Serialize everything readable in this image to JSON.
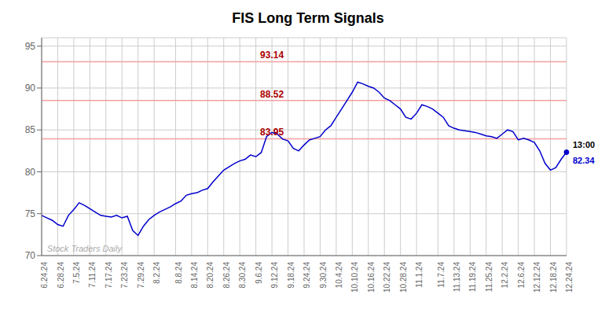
{
  "chart_data": {
    "type": "line",
    "title": "FIS Long Term Signals",
    "categories": [
      "6.24.24",
      null,
      null,
      "6.28.24",
      null,
      null,
      "7.5.24",
      null,
      null,
      "7.11.24",
      null,
      null,
      "7.17.24",
      null,
      null,
      "7.23.24",
      null,
      null,
      "7.29.24",
      null,
      null,
      "8.2.24",
      null,
      null,
      null,
      "8.8.24",
      null,
      null,
      "8.14.24",
      null,
      null,
      "8.20.24",
      null,
      null,
      "8.26.24",
      null,
      null,
      "8.30.24",
      null,
      null,
      "9.6.24",
      null,
      null,
      "9.12.24",
      null,
      null,
      "9.18.24",
      null,
      null,
      "9.24.24",
      null,
      null,
      "9.30.24",
      null,
      null,
      "10.4.24",
      null,
      null,
      "10.10.24",
      null,
      null,
      "10.16.24",
      null,
      null,
      "10.22.24",
      null,
      null,
      "10.28.24",
      null,
      null,
      "11.1.24",
      null,
      null,
      null,
      "11.7.24",
      null,
      null,
      "11.13.24",
      null,
      null,
      "11.19.24",
      null,
      null,
      "11.25.24",
      null,
      null,
      "12.2.24",
      null,
      null,
      "12.6.24",
      null,
      null,
      "12.12.24",
      null,
      null,
      "12.18.24",
      null,
      null,
      "12.24.24"
    ],
    "values": [
      74.8,
      74.5,
      74.2,
      73.7,
      73.5,
      74.8,
      75.5,
      76.3,
      76.0,
      75.6,
      75.2,
      74.8,
      74.7,
      74.6,
      74.8,
      74.5,
      74.7,
      73.0,
      72.4,
      73.5,
      74.3,
      74.8,
      75.2,
      75.5,
      75.8,
      76.2,
      76.5,
      77.2,
      77.4,
      77.5,
      77.8,
      78.0,
      78.8,
      79.5,
      80.2,
      80.6,
      81.0,
      81.3,
      81.5,
      82.0,
      81.8,
      82.3,
      84.2,
      84.7,
      84.5,
      83.9,
      83.7,
      82.8,
      82.5,
      83.2,
      83.8,
      84.0,
      84.2,
      85.0,
      85.5,
      86.5,
      87.5,
      88.5,
      89.5,
      90.7,
      90.5,
      90.2,
      90.0,
      89.5,
      88.8,
      88.5,
      88.0,
      87.5,
      86.5,
      86.3,
      87.0,
      88.0,
      87.8,
      87.5,
      87.0,
      86.5,
      85.5,
      85.2,
      85.0,
      84.9,
      84.8,
      84.7,
      84.5,
      84.3,
      84.2,
      84.0,
      84.5,
      85.0,
      84.8,
      83.8,
      84.0,
      83.8,
      83.5,
      82.5,
      81.0,
      80.2,
      80.5,
      81.5,
      82.34
    ],
    "color": "#0000cc",
    "ylim": [
      70,
      96
    ],
    "yticks": [
      70,
      75,
      80,
      85,
      90,
      95
    ],
    "grid": true,
    "reference_lines": {
      "values": [
        93.14,
        88.52,
        83.95
      ],
      "color": "#f4a0a0",
      "label_color": "#aa0000"
    },
    "last_point": {
      "value": 82.34,
      "time": "13:00",
      "time_color": "#000000",
      "value_color": "#0000cc"
    },
    "watermark": {
      "text": "Stock Traders Daily",
      "color": "#aaaaaa"
    }
  }
}
